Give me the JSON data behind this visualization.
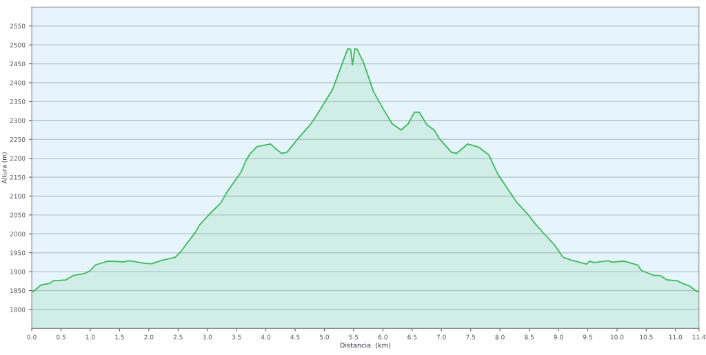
{
  "chart_data": {
    "type": "area",
    "xlabel": "Distancia  (km)",
    "ylabel": "Altura (m)",
    "x": [
      0.0,
      0.02,
      0.16,
      0.31,
      0.37,
      0.58,
      0.71,
      0.9,
      1.0,
      1.09,
      1.3,
      1.58,
      1.66,
      1.94,
      2.05,
      2.22,
      2.45,
      2.53,
      2.79,
      2.87,
      3.04,
      3.23,
      3.34,
      3.57,
      3.66,
      3.73,
      3.85,
      4.08,
      4.17,
      4.27,
      4.36,
      4.57,
      4.76,
      4.86,
      5.14,
      5.31,
      5.4,
      5.45,
      5.48,
      5.52,
      5.56,
      5.67,
      5.84,
      6.01,
      6.16,
      6.31,
      6.43,
      6.54,
      6.62,
      6.75,
      6.88,
      6.96,
      7.17,
      7.26,
      7.45,
      7.64,
      7.81,
      7.96,
      8.06,
      8.28,
      8.47,
      8.59,
      8.72,
      8.93,
      9.08,
      9.23,
      9.48,
      9.53,
      9.61,
      9.86,
      9.91,
      10.12,
      10.35,
      10.42,
      10.63,
      10.73,
      10.86,
      11.03,
      11.13,
      11.24,
      11.37,
      11.4
    ],
    "series": [
      {
        "color": "#3cb95a",
        "values": [
          1850,
          1847,
          1865,
          1869,
          1876,
          1878,
          1890,
          1895,
          1903,
          1918,
          1928,
          1926,
          1929,
          1922,
          1921,
          1930,
          1938,
          1950,
          2003,
          2024,
          2053,
          2082,
          2112,
          2162,
          2194,
          2212,
          2231,
          2238,
          2225,
          2213,
          2216,
          2256,
          2289,
          2312,
          2382,
          2453,
          2490,
          2488,
          2447,
          2490,
          2488,
          2453,
          2376,
          2329,
          2291,
          2275,
          2291,
          2322,
          2322,
          2289,
          2274,
          2253,
          2216,
          2213,
          2238,
          2229,
          2209,
          2159,
          2136,
          2085,
          2053,
          2029,
          2006,
          1971,
          1938,
          1930,
          1920,
          1928,
          1924,
          1929,
          1925,
          1928,
          1918,
          1903,
          1890,
          1890,
          1878,
          1876,
          1868,
          1862,
          1847,
          1850
        ]
      }
    ],
    "xlim": [
      0,
      11.4
    ],
    "xticks": [
      {
        "value": 0,
        "label": "0.0"
      },
      0.5,
      {
        "value": 1,
        "label": "1.0"
      },
      1.5,
      {
        "value": 2,
        "label": "2.0"
      },
      2.5,
      {
        "value": 3,
        "label": "3.0"
      },
      3.5,
      {
        "value": 4,
        "label": "4.0"
      },
      4.5,
      {
        "value": 5,
        "label": "5.0"
      },
      5.5,
      {
        "value": 6,
        "label": "6.0"
      },
      6.5,
      {
        "value": 7,
        "label": "7.0"
      },
      7.5,
      {
        "value": 8,
        "label": "8.0"
      },
      8.5,
      {
        "value": 9,
        "label": "9.0"
      },
      9.5,
      {
        "value": 10,
        "label": "10.0"
      },
      10.5,
      {
        "value": 11,
        "label": "11.0"
      },
      11.4
    ],
    "ylim": [
      1750,
      2600
    ],
    "yticks": [
      1800,
      1850,
      1900,
      1950,
      2000,
      2050,
      2100,
      2150,
      2200,
      2250,
      2300,
      2350,
      2400,
      2450,
      2500,
      2550
    ],
    "grid": "y",
    "legend": false,
    "marker": "none",
    "line_style": "solid"
  }
}
